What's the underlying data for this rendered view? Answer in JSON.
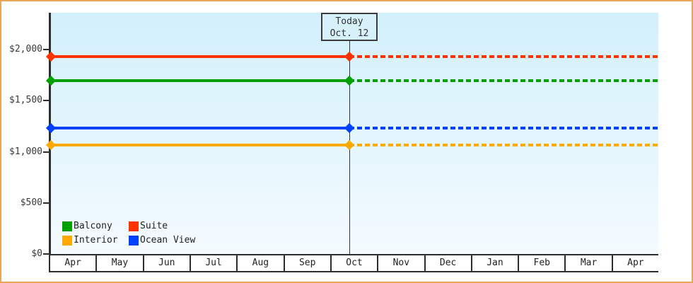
{
  "window": {
    "border_color": "#eba757",
    "background_color": "#ffffff"
  },
  "chart_data": {
    "type": "line",
    "title": "",
    "xlabel": "",
    "ylabel": "",
    "x_axis": {
      "categories": [
        "Apr",
        "May",
        "Jun",
        "Jul",
        "Aug",
        "Sep",
        "Oct",
        "Nov",
        "Dec",
        "Jan",
        "Feb",
        "Mar",
        "Apr"
      ]
    },
    "y_axis": {
      "ticks": [
        {
          "label": "$0",
          "value": 0
        },
        {
          "label": "$500",
          "value": 500
        },
        {
          "label": "$1,000",
          "value": 1000
        },
        {
          "label": "$1,500",
          "value": 1500
        },
        {
          "label": "$2,000",
          "value": 2000
        }
      ],
      "ylim": [
        0,
        2360
      ]
    },
    "today_marker": {
      "line1": "Today",
      "line2": "Oct. 12",
      "month_index": 6,
      "day_fraction": 0.387
    },
    "series": [
      {
        "name": "Suite",
        "color": "#ff3300",
        "value": 1929,
        "style_before_today": "solid",
        "style_after_today": "dashed"
      },
      {
        "name": "Balcony",
        "color": "#00a000",
        "value": 1699,
        "style_before_today": "solid",
        "style_after_today": "dashed"
      },
      {
        "name": "Ocean View",
        "color": "#0040ff",
        "value": 1229,
        "style_before_today": "solid",
        "style_after_today": "dashed"
      },
      {
        "name": "Interior",
        "color": "#ffaa00",
        "value": 1069,
        "style_before_today": "solid",
        "style_after_today": "dashed"
      }
    ],
    "legend": {
      "position": "bottom-left",
      "rows": [
        [
          "Balcony",
          "Suite"
        ],
        [
          "Interior",
          "Ocean View"
        ]
      ]
    },
    "plot_background": {
      "top": "#d2f0fb",
      "bottom": "#f4fbff"
    },
    "grid": false
  }
}
